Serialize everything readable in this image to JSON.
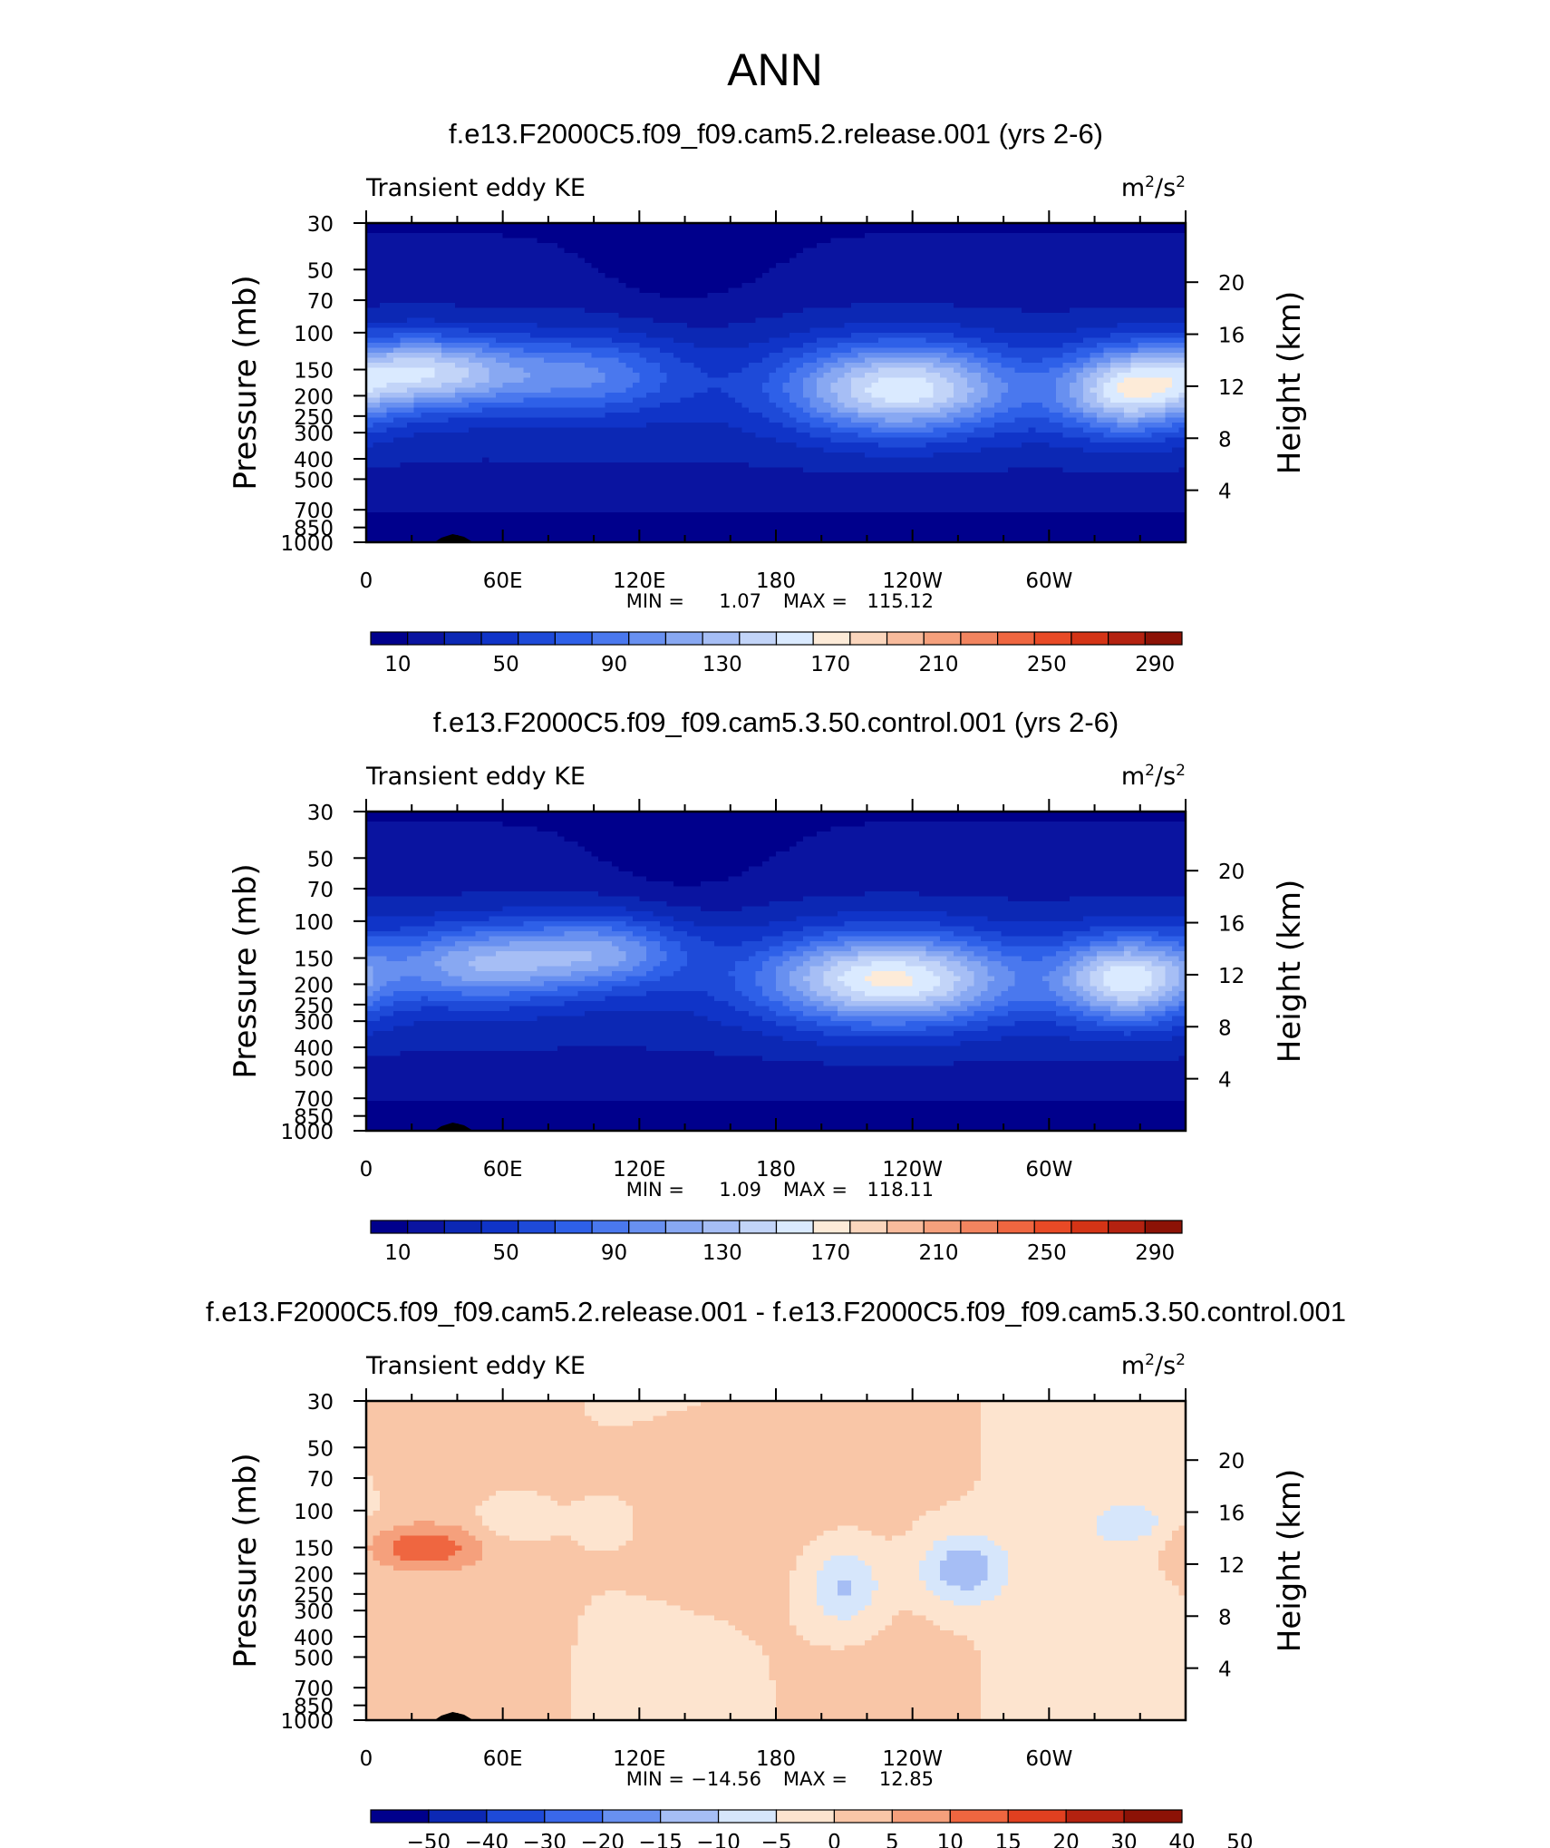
{
  "figure": {
    "main_title": "ANN",
    "background": "#ffffff"
  },
  "chart_data": [
    {
      "type": "heatmap",
      "title": "f.e13.F2000C5.f09_f09.cam5.2.release.001 (yrs 2-6)",
      "variable": "Transient eddy KE",
      "units_base": "m",
      "units_exp": "2",
      "units_slash": "/s",
      "units_exp2": "2",
      "xlabel": "",
      "ylabel": "Pressure (mb)",
      "y2label": "Height (km)",
      "x_ticks": [
        "0",
        "60E",
        "120E",
        "180",
        "120W",
        "60W"
      ],
      "x_tick_values": [
        0,
        60,
        120,
        180,
        240,
        300
      ],
      "xlim": [
        0,
        360
      ],
      "y_ticks": [
        "30",
        "50",
        "70",
        "100",
        "150",
        "200",
        "250",
        "300",
        "400",
        "500",
        "700",
        "850",
        "1000"
      ],
      "y_tick_values": [
        30,
        50,
        70,
        100,
        150,
        200,
        250,
        300,
        400,
        500,
        700,
        850,
        1000
      ],
      "ylim": [
        1000,
        30
      ],
      "y_scale": "log",
      "y2_ticks": [
        "20",
        "16",
        "12",
        "8",
        "4"
      ],
      "y2_tick_values": [
        20,
        16,
        12,
        8,
        4
      ],
      "min_label": "MIN =",
      "min_value": "1.07",
      "max_label": "MAX =",
      "max_value": "115.12",
      "colorbar_labels": [
        "10",
        "50",
        "90",
        "130",
        "170",
        "210",
        "250",
        "290"
      ],
      "colorbar_levels": [
        0,
        10,
        20,
        30,
        40,
        50,
        60,
        70,
        80,
        90,
        100,
        110,
        120,
        130,
        140,
        150,
        160,
        170,
        180,
        190,
        200,
        210,
        220,
        230,
        240,
        250,
        260,
        270,
        280,
        290,
        300
      ],
      "field": "release"
    },
    {
      "type": "heatmap",
      "title": "f.e13.F2000C5.f09_f09.cam5.3.50.control.001 (yrs 2-6)",
      "variable": "Transient eddy KE",
      "units_base": "m",
      "units_exp": "2",
      "units_slash": "/s",
      "units_exp2": "2",
      "xlabel": "",
      "ylabel": "Pressure (mb)",
      "y2label": "Height (km)",
      "x_ticks": [
        "0",
        "60E",
        "120E",
        "180",
        "120W",
        "60W"
      ],
      "x_tick_values": [
        0,
        60,
        120,
        180,
        240,
        300
      ],
      "xlim": [
        0,
        360
      ],
      "y_ticks": [
        "30",
        "50",
        "70",
        "100",
        "150",
        "200",
        "250",
        "300",
        "400",
        "500",
        "700",
        "850",
        "1000"
      ],
      "y_tick_values": [
        30,
        50,
        70,
        100,
        150,
        200,
        250,
        300,
        400,
        500,
        700,
        850,
        1000
      ],
      "ylim": [
        1000,
        30
      ],
      "y_scale": "log",
      "y2_ticks": [
        "20",
        "16",
        "12",
        "8",
        "4"
      ],
      "y2_tick_values": [
        20,
        16,
        12,
        8,
        4
      ],
      "min_label": "MIN =",
      "min_value": "1.09",
      "max_label": "MAX =",
      "max_value": "118.11",
      "colorbar_labels": [
        "10",
        "50",
        "90",
        "130",
        "170",
        "210",
        "250",
        "290"
      ],
      "colorbar_levels": [
        0,
        10,
        20,
        30,
        40,
        50,
        60,
        70,
        80,
        90,
        100,
        110,
        120,
        130,
        140,
        150,
        160,
        170,
        180,
        190,
        200,
        210,
        220,
        230,
        240,
        250,
        260,
        270,
        280,
        290,
        300
      ],
      "field": "control"
    },
    {
      "type": "heatmap",
      "title": "f.e13.F2000C5.f09_f09.cam5.2.release.001 - f.e13.F2000C5.f09_f09.cam5.3.50.control.001",
      "variable": "Transient eddy KE",
      "units_base": "m",
      "units_exp": "2",
      "units_slash": "/s",
      "units_exp2": "2",
      "xlabel": "",
      "ylabel": "Pressure (mb)",
      "y2label": "Height (km)",
      "x_ticks": [
        "0",
        "60E",
        "120E",
        "180",
        "120W",
        "60W"
      ],
      "x_tick_values": [
        0,
        60,
        120,
        180,
        240,
        300
      ],
      "xlim": [
        0,
        360
      ],
      "y_ticks": [
        "30",
        "50",
        "70",
        "100",
        "150",
        "200",
        "250",
        "300",
        "400",
        "500",
        "700",
        "850",
        "1000"
      ],
      "y_tick_values": [
        30,
        50,
        70,
        100,
        150,
        200,
        250,
        300,
        400,
        500,
        700,
        850,
        1000
      ],
      "ylim": [
        1000,
        30
      ],
      "y_scale": "log",
      "y2_ticks": [
        "20",
        "16",
        "12",
        "8",
        "4"
      ],
      "y2_tick_values": [
        20,
        16,
        12,
        8,
        4
      ],
      "min_label": "MIN =",
      "min_value": "−14.56",
      "max_label": "MAX =",
      "max_value": "12.85",
      "colorbar_labels": [
        "−50",
        "−40",
        "−30",
        "−20",
        "−15",
        "−10",
        "−5",
        "0",
        "5",
        "10",
        "15",
        "20",
        "30",
        "40",
        "50"
      ],
      "colorbar_levels": [
        -60,
        -50,
        -40,
        -30,
        -20,
        -15,
        -10,
        -5,
        0,
        5,
        10,
        15,
        20,
        30,
        40,
        50,
        60
      ],
      "field": "diff"
    }
  ],
  "colormaps": {
    "sequential": [
      "#00008c",
      "#0a14a0",
      "#0c28b4",
      "#1034c8",
      "#1e4ad8",
      "#2e60e8",
      "#4a78ee",
      "#6890f0",
      "#88a8f2",
      "#a6bef5",
      "#c2d4f8",
      "#daeaff",
      "#fdebd8",
      "#fbd6bd",
      "#f8bb9c",
      "#f5a07c",
      "#f2845f",
      "#ef6640",
      "#e84a26",
      "#d43416",
      "#b42210",
      "#8c1206"
    ],
    "diverging": [
      "#00008c",
      "#0c28b4",
      "#1e4ad8",
      "#3a68ea",
      "#6890f0",
      "#a6bef5",
      "#d6e6fb",
      "#fde4cf",
      "#f9c6a7",
      "#f5a07c",
      "#ef6640",
      "#e04020",
      "#b42210",
      "#8c1206"
    ],
    "sequential_levels": [
      0,
      10,
      20,
      30,
      40,
      50,
      60,
      70,
      80,
      90,
      100,
      110,
      120,
      130,
      140,
      150,
      160,
      170,
      180,
      190,
      200,
      210,
      220,
      230,
      240,
      250,
      260,
      270,
      280,
      290,
      300
    ],
    "diverging_levels": [
      -60,
      -50,
      -40,
      -30,
      -20,
      -15,
      -10,
      -5,
      0,
      5,
      10,
      15,
      20,
      30,
      40,
      50,
      60
    ]
  }
}
